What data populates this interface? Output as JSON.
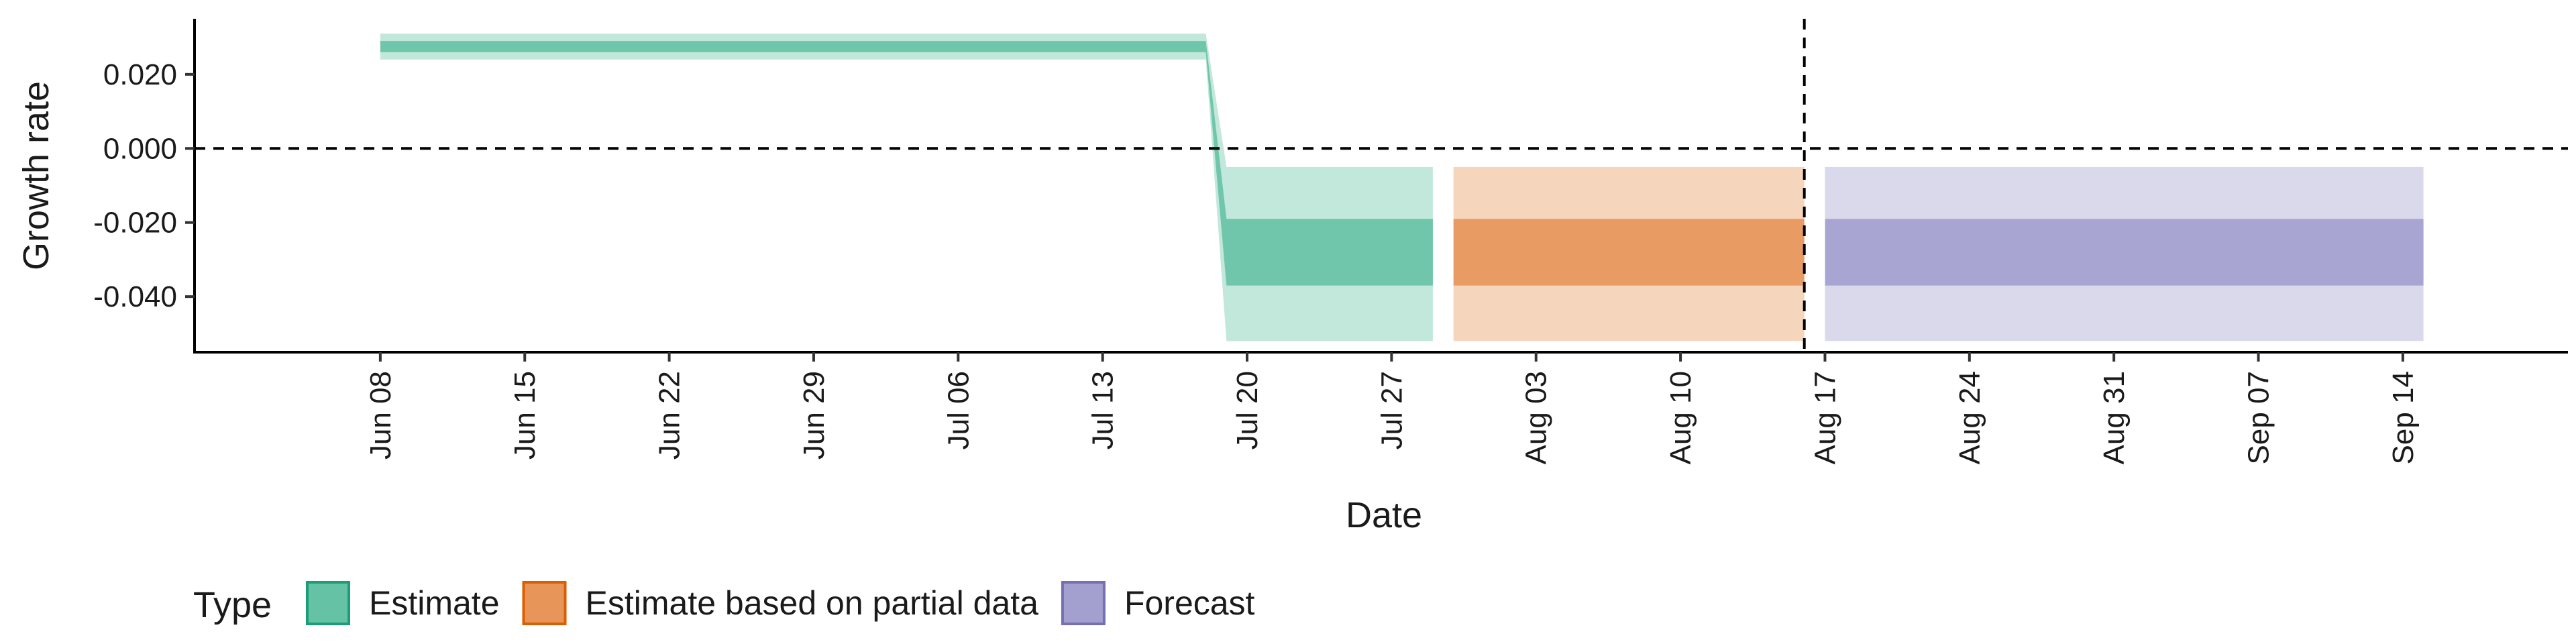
{
  "chart_data": {
    "type": "area",
    "title": "",
    "xlabel": "Date",
    "ylabel": "Growth rate",
    "y_ticks": [
      0.02,
      0.0,
      -0.02,
      -0.04
    ],
    "y_tick_labels": [
      "0.020",
      "0.000",
      "-0.020",
      "-0.040"
    ],
    "ylim": [
      -0.055,
      0.035
    ],
    "xlim": [
      "2020-05-30",
      "2020-09-22"
    ],
    "x_ticks": [
      "2020-06-08",
      "2020-06-15",
      "2020-06-22",
      "2020-06-29",
      "2020-07-06",
      "2020-07-13",
      "2020-07-20",
      "2020-07-27",
      "2020-08-03",
      "2020-08-10",
      "2020-08-17",
      "2020-08-24",
      "2020-08-31",
      "2020-09-07",
      "2020-09-14"
    ],
    "x_tick_labels": [
      "Jun 08",
      "Jun 15",
      "Jun 22",
      "Jun 29",
      "Jul 06",
      "Jul 13",
      "Jul 20",
      "Jul 27",
      "Aug 03",
      "Aug 10",
      "Aug 17",
      "Aug 24",
      "Aug 31",
      "Sep 07",
      "Sep 14"
    ],
    "reference_lines": {
      "horizontal_y": 0.0,
      "vertical_date": "2020-08-16"
    },
    "grid": false,
    "legend": {
      "title": "Type",
      "placement": "bottom-left"
    },
    "series": [
      {
        "name": "Estimate",
        "color": "#1b9e77",
        "fill": "#66c2a5",
        "points": [
          {
            "x": "2020-06-08",
            "outer": [
              0.024,
              0.031
            ],
            "inner": [
              0.026,
              0.029
            ]
          },
          {
            "x": "2020-07-18",
            "outer": [
              0.024,
              0.031
            ],
            "inner": [
              0.026,
              0.029
            ]
          },
          {
            "x": "2020-07-19",
            "outer": [
              -0.052,
              -0.005
            ],
            "inner": [
              -0.037,
              -0.019
            ]
          },
          {
            "x": "2020-07-29",
            "outer": [
              -0.052,
              -0.005
            ],
            "inner": [
              -0.037,
              -0.019
            ]
          }
        ]
      },
      {
        "name": "Estimate based on partial data",
        "color": "#d95f02",
        "fill": "#e8955a",
        "points": [
          {
            "x": "2020-07-30",
            "outer": [
              -0.052,
              -0.005
            ],
            "inner": [
              -0.037,
              -0.019
            ]
          },
          {
            "x": "2020-08-16",
            "outer": [
              -0.052,
              -0.005
            ],
            "inner": [
              -0.037,
              -0.019
            ]
          }
        ]
      },
      {
        "name": "Forecast",
        "color": "#7570b3",
        "fill": "#a39fcf",
        "points": [
          {
            "x": "2020-08-17",
            "outer": [
              -0.052,
              -0.005
            ],
            "inner": [
              -0.037,
              -0.019
            ]
          },
          {
            "x": "2020-09-15",
            "outer": [
              -0.052,
              -0.005
            ],
            "inner": [
              -0.037,
              -0.019
            ]
          }
        ]
      }
    ]
  }
}
